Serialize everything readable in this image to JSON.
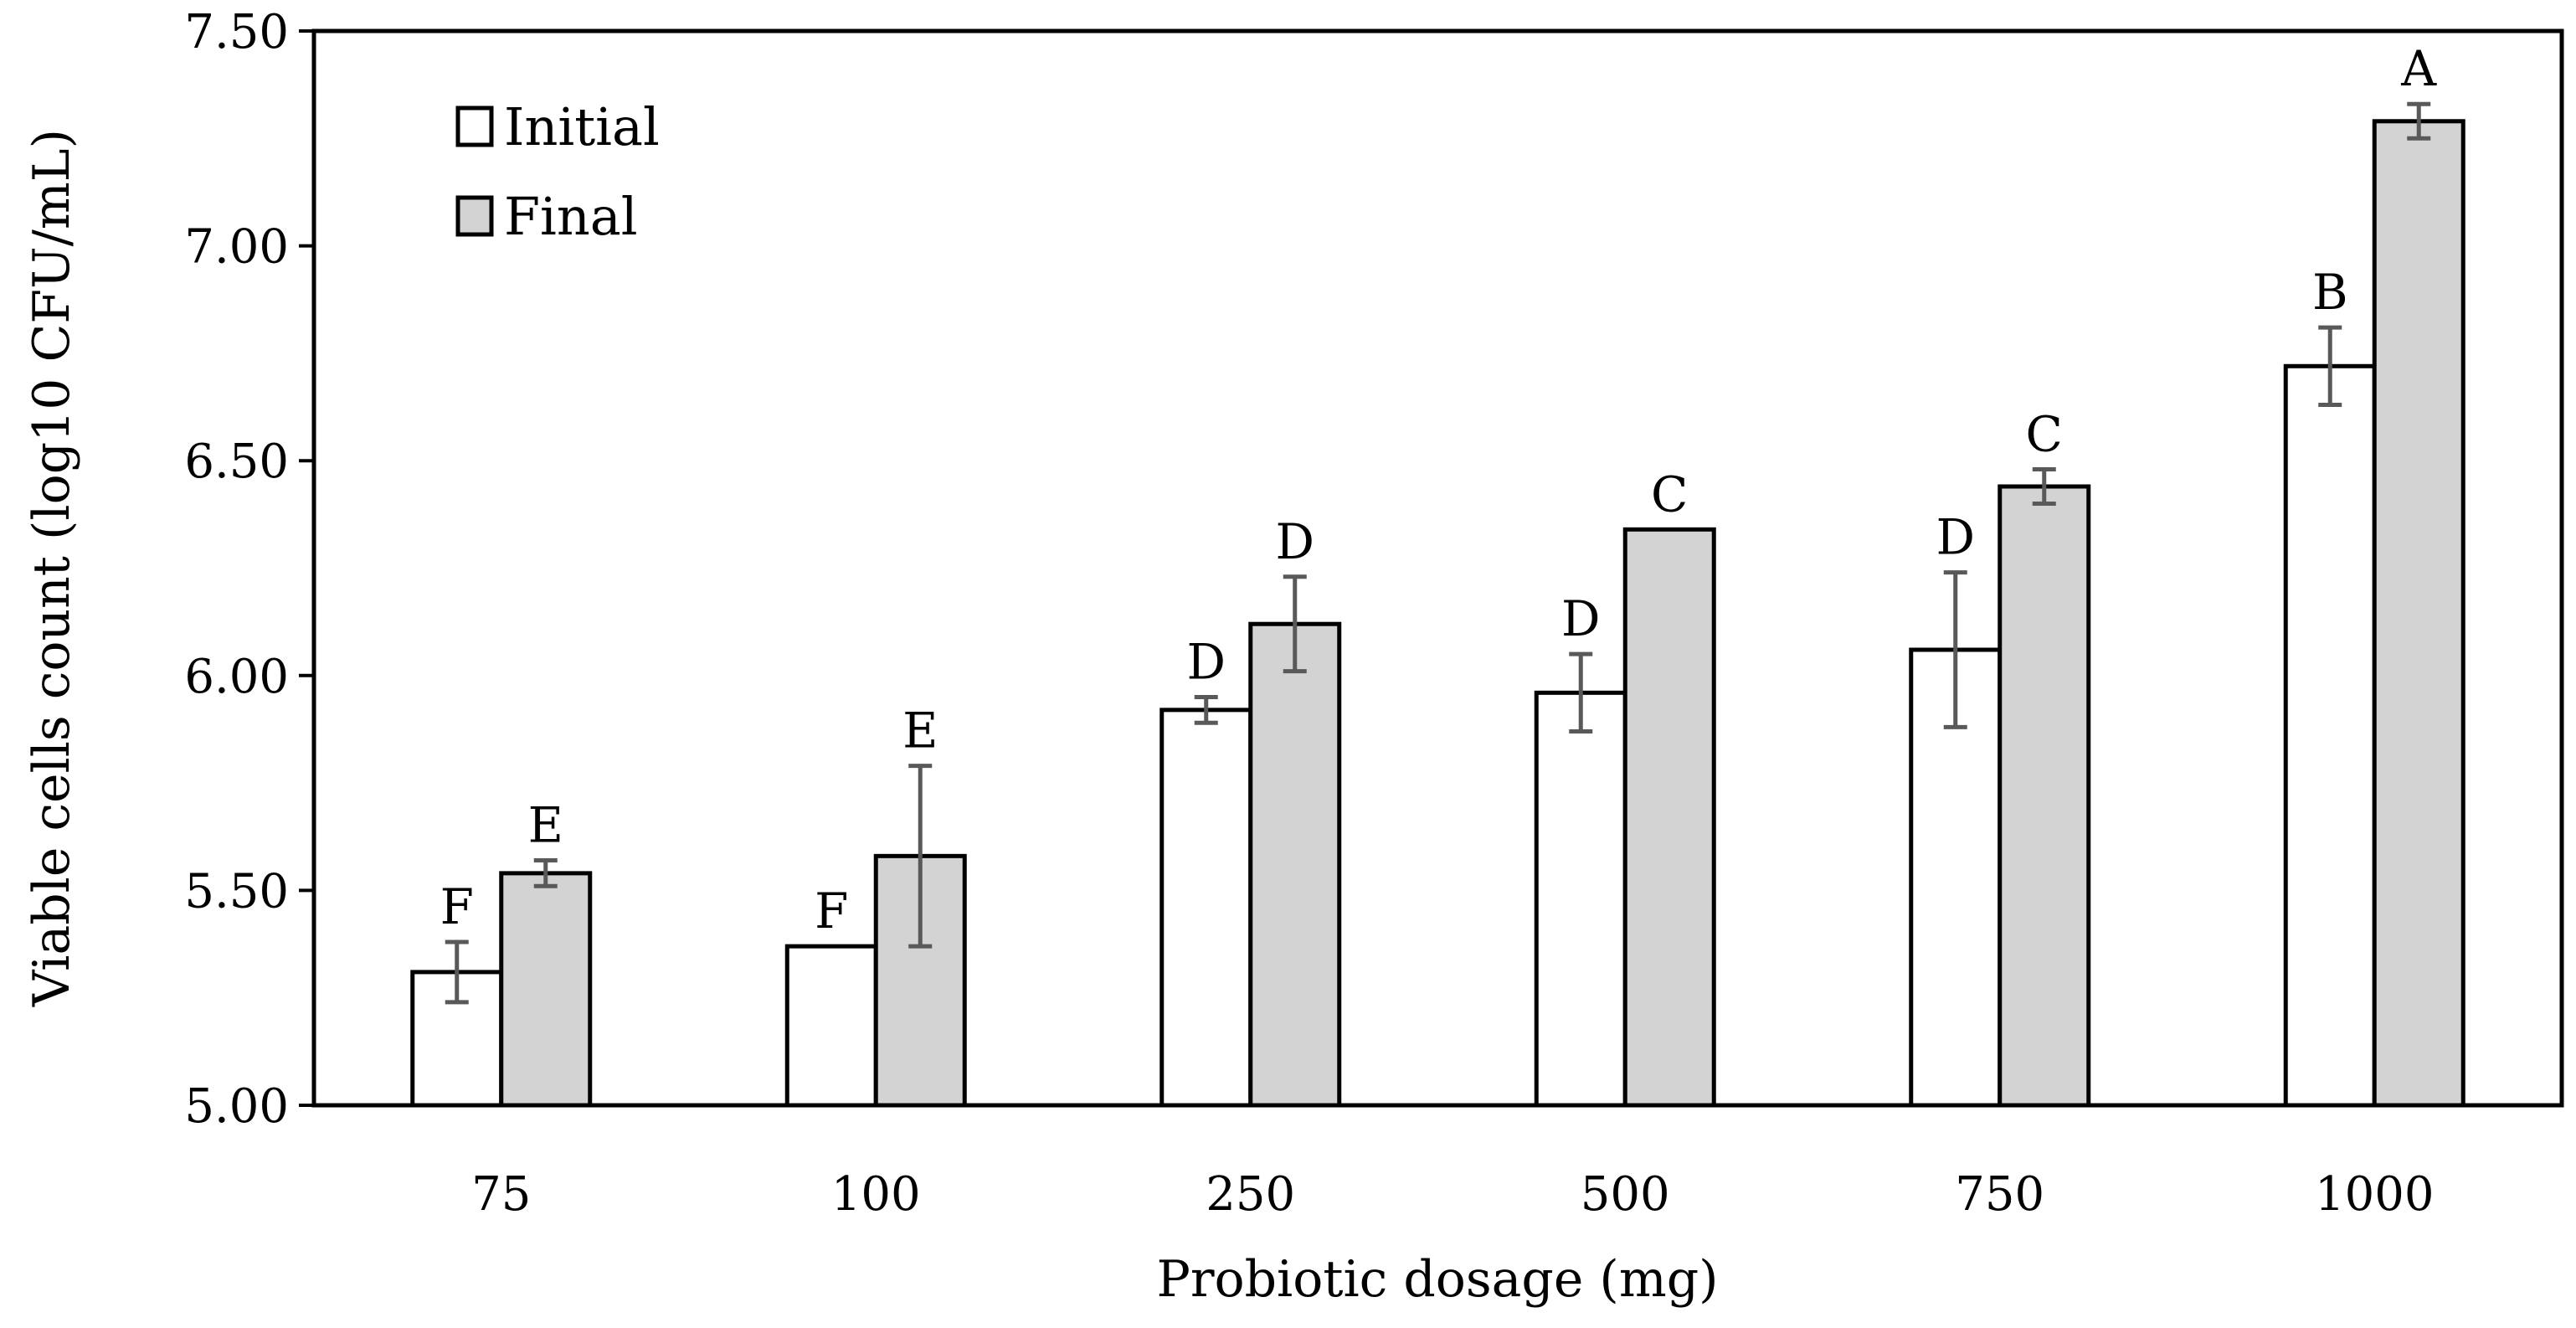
{
  "chart_data": {
    "type": "bar",
    "title": "",
    "xlabel": "Probiotic dosage (mg)",
    "ylabel": "Viable cells count (log10 CFU/mL)",
    "ylim": [
      5.0,
      7.5
    ],
    "yticks": [
      "5.00",
      "5.50",
      "6.00",
      "6.50",
      "7.00",
      "7.50"
    ],
    "ytick_values": [
      5.0,
      5.5,
      6.0,
      6.5,
      7.0,
      7.5
    ],
    "categories": [
      "75",
      "100",
      "250",
      "500",
      "750",
      "1000"
    ],
    "legend_position": "top-left",
    "grid": false,
    "series": [
      {
        "name": "Initial",
        "color": "#ffffff",
        "values": [
          5.31,
          5.37,
          5.92,
          5.96,
          6.06,
          6.72
        ],
        "errors": [
          0.07,
          0.0,
          0.03,
          0.09,
          0.18,
          0.09
        ],
        "labels": [
          "F",
          "F",
          "D",
          "D",
          "D",
          "B"
        ]
      },
      {
        "name": "Final",
        "color": "#d3d3d3",
        "values": [
          5.54,
          5.58,
          6.12,
          6.34,
          6.44,
          7.29
        ],
        "errors": [
          0.03,
          0.21,
          0.11,
          0.0,
          0.04,
          0.04
        ],
        "labels": [
          "E",
          "E",
          "D",
          "C",
          "C",
          "A"
        ]
      }
    ]
  }
}
